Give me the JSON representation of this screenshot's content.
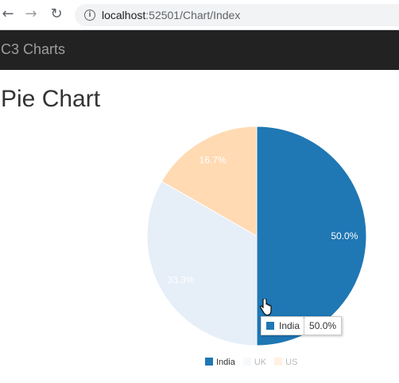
{
  "browser": {
    "url_host": "localhost",
    "url_rest": ":52501/Chart/Index",
    "back_icon": "←",
    "forward_icon": "→",
    "reload_icon": "↻",
    "info_icon": "i"
  },
  "navbar": {
    "brand": "C3 Charts"
  },
  "page": {
    "title": "Pie Chart"
  },
  "chart_data": {
    "type": "pie",
    "categories": [
      "India",
      "UK",
      "US"
    ],
    "values": [
      50.0,
      33.3,
      16.7
    ],
    "labels": [
      "50.0%",
      "33.3%",
      "16.7%"
    ],
    "colors": [
      "#1f77b4",
      "#e6eef8",
      "#ffdab3"
    ],
    "legend_placement": "bottom"
  },
  "legend": {
    "items": [
      {
        "label": "India",
        "color": "#1f77b4"
      },
      {
        "label": "UK",
        "color": "#e6eef8"
      },
      {
        "label": "US",
        "color": "#ffdab3"
      }
    ]
  },
  "tooltip": {
    "name": "India",
    "value": "50.0%",
    "color": "#1f77b4"
  }
}
